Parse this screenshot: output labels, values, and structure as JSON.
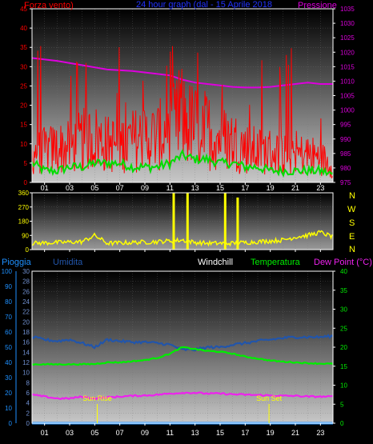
{
  "title": "24 hour graph (dal - 15 Aprile 2018",
  "colors": {
    "wind": "#ff0000",
    "gust": "#00dd00",
    "pressure": "#dd00dd",
    "dir": "#ffff00",
    "rain": "#1e90ff",
    "humidity": "#2255aa",
    "windchill": "#ffffff",
    "temp": "#00ee00",
    "dew": "#ee22ee",
    "title": "#2233ff",
    "frame": "#ffffff"
  },
  "x_ticks": [
    "01",
    "03",
    "05",
    "07",
    "09",
    "11",
    "13",
    "15",
    "17",
    "19",
    "21",
    "23"
  ],
  "chart_data": [
    {
      "type": "line",
      "labels": {
        "left": "Forza vento)",
        "right": "Pressione"
      },
      "y_left": {
        "ticks": [
          0,
          5,
          10,
          15,
          20,
          25,
          30,
          35,
          40,
          45
        ],
        "ylim": [
          0,
          45
        ]
      },
      "y_right": {
        "ticks": [
          975,
          980,
          985,
          990,
          995,
          1000,
          1005,
          1010,
          1015,
          1020,
          1025,
          1030,
          1035
        ],
        "ylim": [
          975,
          1035
        ]
      },
      "series": [
        {
          "axis": "right",
          "color_key": "pressure",
          "x": [
            0,
            2,
            4,
            6,
            8,
            10,
            11,
            12,
            13,
            14,
            15,
            16,
            17,
            18,
            19,
            20,
            21,
            22,
            23,
            24
          ],
          "y": [
            1018,
            1017,
            1015.5,
            1014,
            1013.5,
            1012.5,
            1012,
            1010.5,
            1009.5,
            1009,
            1008.5,
            1008,
            1007.8,
            1007.8,
            1008,
            1008.5,
            1009,
            1009.5,
            1009,
            1009
          ]
        },
        {
          "axis": "left",
          "color_key": "gust",
          "style": "noisy",
          "noise": 1.2,
          "x": [
            0,
            1,
            2,
            3,
            4,
            5,
            6,
            7,
            8,
            9,
            10,
            11,
            12,
            13,
            14,
            15,
            16,
            17,
            18,
            19,
            20,
            21,
            22,
            23,
            24
          ],
          "y": [
            5,
            3,
            3,
            4,
            4,
            5,
            5,
            5,
            4,
            4,
            4,
            5,
            7,
            6,
            6,
            5,
            5,
            4,
            4,
            3,
            3,
            3,
            3,
            3,
            2
          ]
        },
        {
          "axis": "left",
          "color_key": "wind",
          "style": "spiky",
          "max_spike": 36,
          "x": [
            0,
            1,
            2,
            3,
            4,
            5,
            6,
            7,
            8,
            9,
            10,
            11,
            12,
            13,
            14,
            15,
            16,
            17,
            18,
            19,
            20,
            21,
            22,
            23,
            24
          ],
          "y": [
            9,
            9,
            10,
            10,
            12,
            13,
            11,
            11,
            12,
            13,
            13,
            16,
            18,
            16,
            15,
            13,
            12,
            10,
            9,
            9,
            8,
            8,
            8,
            7,
            5
          ]
        }
      ]
    },
    {
      "type": "line",
      "labels": {
        "right": [
          "N",
          "W",
          "S",
          "E",
          "N"
        ]
      },
      "y_left": {
        "ticks": [
          0,
          90,
          180,
          270,
          360
        ],
        "ylim": [
          0,
          360
        ]
      },
      "series": [
        {
          "axis": "left",
          "color_key": "dir",
          "style": "noisy",
          "noise": 14,
          "x": [
            0,
            2,
            4,
            5,
            6,
            8,
            10,
            12,
            13,
            14,
            16,
            17,
            18,
            20,
            21,
            22,
            23,
            24
          ],
          "y": [
            40,
            45,
            50,
            90,
            40,
            45,
            50,
            60,
            45,
            40,
            40,
            45,
            50,
            60,
            80,
            90,
            110,
            80
          ],
          "spikes": [
            {
              "x": 11.3,
              "y": 360
            },
            {
              "x": 12.4,
              "y": 360
            },
            {
              "x": 15.4,
              "y": 360
            },
            {
              "x": 16.4,
              "y": 330
            }
          ]
        }
      ]
    },
    {
      "type": "line",
      "labels": {
        "rain": "Pioggia",
        "humidity": "Umidita",
        "windchill": "Windchill",
        "temp": "Temperatura",
        "dew": "Dew Point (°C)"
      },
      "y_rain": {
        "ticks": [
          0,
          10,
          20,
          30,
          40,
          50,
          60,
          70,
          80,
          90,
          100
        ],
        "ylim": [
          0,
          100
        ]
      },
      "y_hum": {
        "ticks": [
          0,
          2,
          4,
          6,
          8,
          10,
          12,
          14,
          16,
          18,
          20,
          22,
          24,
          26,
          28,
          30
        ],
        "ylim": [
          0,
          30
        ]
      },
      "y_right": {
        "ticks": [
          0,
          5,
          10,
          15,
          20,
          25,
          30,
          35,
          40
        ],
        "ylim": [
          0,
          40
        ]
      },
      "annotations": [
        {
          "text": "Sun Rise",
          "x": 5.2
        },
        {
          "text": "Sun Set",
          "x": 18.9
        }
      ],
      "series": [
        {
          "name": "Pioggia",
          "axis": "rain",
          "color_key": "rain",
          "x": [
            0,
            24
          ],
          "y": [
            0,
            0
          ]
        },
        {
          "name": "Umidita",
          "axis": "hum",
          "color_key": "humidity",
          "style": "noisy",
          "noise": 0.25,
          "x": [
            0,
            1,
            2,
            3,
            4,
            5,
            6,
            7,
            8,
            9,
            10,
            11,
            12,
            13,
            14,
            15,
            16,
            17,
            18,
            19,
            20,
            21,
            22,
            23,
            24
          ],
          "y": [
            17,
            16.5,
            16.2,
            16.5,
            15.8,
            15,
            16.5,
            16.2,
            16,
            16,
            15.8,
            15.5,
            14.5,
            14.5,
            15,
            15,
            15.5,
            15.8,
            16.2,
            16.5,
            16.8,
            17,
            17,
            17,
            17.2
          ]
        },
        {
          "name": "Temperatura",
          "axis": "right",
          "color_key": "temp",
          "style": "noisy",
          "noise": 0.15,
          "x": [
            0,
            1,
            2,
            3,
            4,
            5,
            6,
            7,
            8,
            9,
            10,
            11,
            12,
            13,
            14,
            15,
            16,
            17,
            18,
            19,
            20,
            21,
            22,
            23,
            24
          ],
          "y": [
            15.5,
            15.5,
            15.5,
            15.5,
            15.5,
            15.6,
            16,
            16,
            16.3,
            16.6,
            17.2,
            18.3,
            20,
            19.5,
            19,
            18.8,
            18.3,
            17.5,
            17,
            16.5,
            16.2,
            16,
            15.8,
            15.7,
            15.6
          ]
        },
        {
          "name": "Dew Point (°C)",
          "axis": "right",
          "color_key": "dew",
          "style": "noisy",
          "noise": 0.2,
          "x": [
            0,
            1,
            2,
            3,
            4,
            5,
            6,
            7,
            8,
            9,
            10,
            11,
            12,
            13,
            14,
            15,
            16,
            17,
            18,
            19,
            20,
            21,
            22,
            23,
            24
          ],
          "y": [
            7.5,
            7,
            6.5,
            6.5,
            7,
            6.5,
            6.8,
            7,
            7.2,
            7.3,
            7.5,
            7.8,
            8,
            8,
            7.8,
            7.8,
            7.6,
            7.5,
            7.4,
            7.3,
            7.2,
            7.2,
            7,
            7,
            7
          ]
        }
      ]
    }
  ]
}
